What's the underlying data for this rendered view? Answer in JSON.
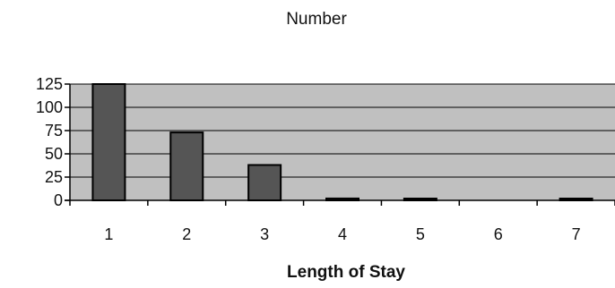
{
  "chart_data": {
    "type": "bar",
    "title": "Number",
    "xlabel": "Length of Stay",
    "ylabel": "",
    "categories": [
      "1",
      "2",
      "3",
      "4",
      "5",
      "6",
      "7"
    ],
    "values": [
      125,
      73,
      38,
      2,
      1,
      0,
      1
    ],
    "ylim": [
      0,
      125
    ],
    "yticks": [
      "0",
      "25",
      "50",
      "75",
      "100",
      "125"
    ],
    "grid": true,
    "legend": "none",
    "colors": {
      "plot_background": "#c0c0c0",
      "bar_fill": "#555555",
      "bar_stroke": "#000000",
      "gridline": "#000000"
    }
  }
}
